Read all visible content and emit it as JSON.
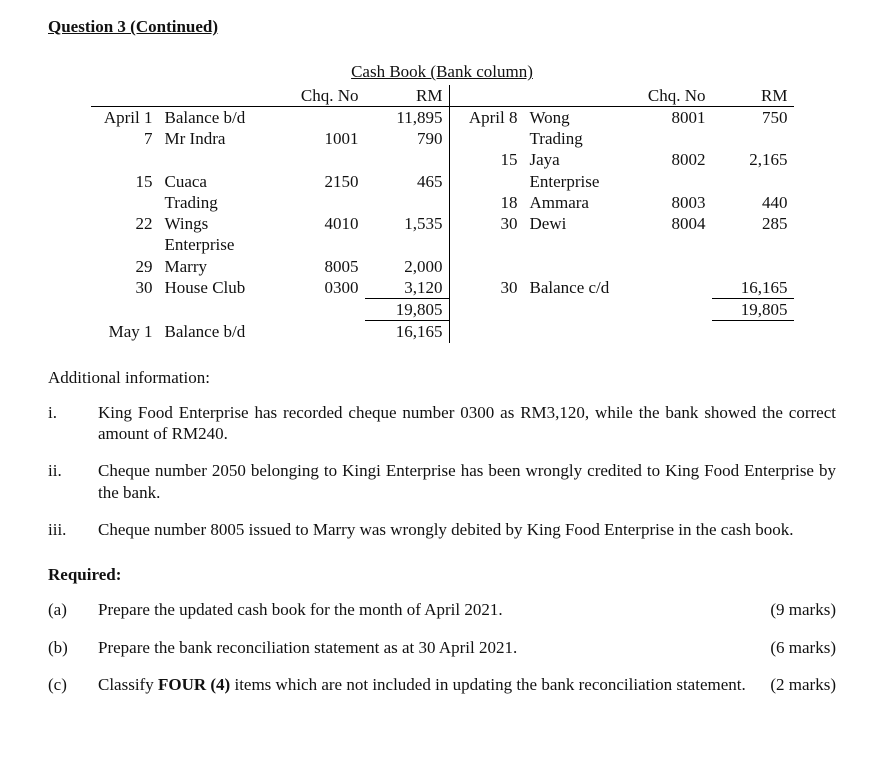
{
  "title": "Question 3 (Continued)",
  "cashbook": {
    "heading": "Cash Book (Bank column)",
    "header": {
      "chq": "Chq. No",
      "rm": "RM"
    },
    "separator": "|",
    "left": {
      "r1": {
        "date": "April 1",
        "desc": "Balance b/d",
        "chq": "",
        "rm": "11,895"
      },
      "r2": {
        "date": "7",
        "desc": "Mr Indra",
        "chq": "1001",
        "rm": "790"
      },
      "r3": {
        "date": "15",
        "desc": "Cuaca",
        "chq": "2150",
        "rm": "465"
      },
      "r3b": {
        "desc": "Trading"
      },
      "r4": {
        "date": "22",
        "desc": "Wings",
        "chq": "4010",
        "rm": "1,535"
      },
      "r4b": {
        "desc": "Enterprise"
      },
      "r5": {
        "date": "29",
        "desc": "Marry",
        "chq": "8005",
        "rm": "2,000"
      },
      "r6": {
        "date": "30",
        "desc": "House Club",
        "chq": "0300",
        "rm": "3,120"
      },
      "total": "19,805",
      "r7": {
        "date": "May 1",
        "desc": "Balance b/d",
        "chq": "",
        "rm": "16,165"
      }
    },
    "right": {
      "r1": {
        "date": "April 8",
        "desc": "Wong",
        "chq": "8001",
        "rm": "750"
      },
      "r1b": {
        "desc": "Trading"
      },
      "r2": {
        "date": "15",
        "desc": "Jaya",
        "chq": "8002",
        "rm": "2,165"
      },
      "r2b": {
        "desc": "Enterprise"
      },
      "r3": {
        "date": "18",
        "desc": "Ammara",
        "chq": "8003",
        "rm": "440"
      },
      "r4": {
        "date": "30",
        "desc": "Dewi",
        "chq": "8004",
        "rm": "285"
      },
      "r5": {
        "date": "30",
        "desc": "Balance c/d",
        "chq": "",
        "rm": "16,165"
      },
      "total": "19,805"
    }
  },
  "additional_label": "Additional information:",
  "info": {
    "i": {
      "lbl": "i.",
      "txt": "King Food Enterprise has recorded cheque number 0300 as RM3,120, while the bank showed the correct amount of RM240."
    },
    "ii": {
      "lbl": "ii.",
      "txt": "Cheque number 2050 belonging to Kingi Enterprise has been wrongly credited to King Food Enterprise by the bank."
    },
    "iii": {
      "lbl": "iii.",
      "txt": "Cheque number 8005 issued to Marry was wrongly debited by King Food Enterprise in the cash book."
    }
  },
  "required_label": "Required:",
  "req": {
    "a": {
      "lbl": "(a)",
      "txt": "Prepare the updated cash book for the month of April 2021.",
      "marks": "(9 marks)"
    },
    "b": {
      "lbl": "(b)",
      "txt": "Prepare the bank reconciliation statement as at 30 April 2021.",
      "marks": "(6 marks)"
    },
    "c": {
      "lbl": "(c)",
      "txt_pre": "Classify ",
      "txt_bold": "FOUR (4)",
      "txt_post": " items which are not included in updating the bank reconciliation statement.",
      "marks": "(2 marks)"
    }
  }
}
